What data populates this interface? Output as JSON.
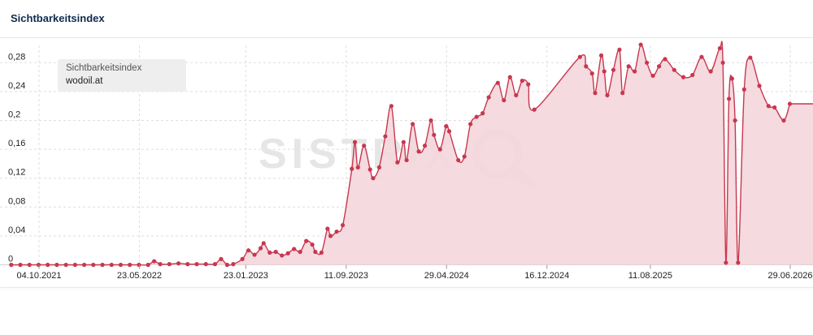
{
  "header": {
    "title": "Sichtbarkeitsindex"
  },
  "legend": {
    "metric": "Sichtbarkeitsindex",
    "domain": "wodoil.at"
  },
  "watermark": "SISTRIX",
  "colors": {
    "line": "#c8374f",
    "fill": "#f4d6dc",
    "grid": "#dedede"
  },
  "chart_data": {
    "type": "area",
    "title": "Sichtbarkeitsindex",
    "xlabel": "",
    "ylabel": "",
    "ylim": [
      0,
      0.3
    ],
    "yticks": [
      "0",
      "0,04",
      "0,08",
      "0,12",
      "0,16",
      "0,2",
      "0,24",
      "0,28"
    ],
    "xticks": [
      "04.10.2021",
      "23.05.2022",
      "23.01.2023",
      "11.09.2023",
      "29.04.2024",
      "16.12.2024",
      "11.08.2025",
      "29.06.2026"
    ],
    "grid": true,
    "legend_position": "top-left",
    "series": [
      {
        "name": "wodoil.at",
        "points": [
          [
            "2021-08-01",
            0
          ],
          [
            "2021-08-22",
            0
          ],
          [
            "2021-09-12",
            0
          ],
          [
            "2021-10-03",
            0
          ],
          [
            "2021-10-24",
            0
          ],
          [
            "2021-11-14",
            0
          ],
          [
            "2021-12-05",
            0
          ],
          [
            "2021-12-26",
            0
          ],
          [
            "2022-01-16",
            0
          ],
          [
            "2022-02-06",
            0
          ],
          [
            "2022-02-27",
            0
          ],
          [
            "2022-03-20",
            0
          ],
          [
            "2022-04-10",
            0
          ],
          [
            "2022-05-01",
            0
          ],
          [
            "2022-05-22",
            0
          ],
          [
            "2022-06-12",
            0
          ],
          [
            "2022-06-26",
            0.005
          ],
          [
            "2022-07-10",
            0.001
          ],
          [
            "2022-07-31",
            0.001
          ],
          [
            "2022-08-21",
            0.002
          ],
          [
            "2022-09-11",
            0.001
          ],
          [
            "2022-10-02",
            0.001
          ],
          [
            "2022-10-23",
            0.001
          ],
          [
            "2022-11-13",
            0.001
          ],
          [
            "2022-11-27",
            0.008
          ],
          [
            "2022-12-11",
            0
          ],
          [
            "2022-12-25",
            0.001
          ],
          [
            "2023-01-15",
            0.008
          ],
          [
            "2023-01-29",
            0.02
          ],
          [
            "2023-02-12",
            0.014
          ],
          [
            "2023-02-26",
            0.023
          ],
          [
            "2023-03-05",
            0.03
          ],
          [
            "2023-03-19",
            0.017
          ],
          [
            "2023-04-02",
            0.018
          ],
          [
            "2023-04-16",
            0.013
          ],
          [
            "2023-04-30",
            0.016
          ],
          [
            "2023-05-14",
            0.022
          ],
          [
            "2023-05-28",
            0.018
          ],
          [
            "2023-06-11",
            0.033
          ],
          [
            "2023-06-25",
            0.028
          ],
          [
            "2023-07-02",
            0.018
          ],
          [
            "2023-07-16",
            0.017
          ],
          [
            "2023-07-30",
            0.05
          ],
          [
            "2023-08-06",
            0.04
          ],
          [
            "2023-08-20",
            0.046
          ],
          [
            "2023-09-03",
            0.055
          ],
          [
            "2023-09-24",
            0.133
          ],
          [
            "2023-10-01",
            0.17
          ],
          [
            "2023-10-08",
            0.135
          ],
          [
            "2023-10-22",
            0.165
          ],
          [
            "2023-11-05",
            0.132
          ],
          [
            "2023-11-12",
            0.12
          ],
          [
            "2023-11-26",
            0.135
          ],
          [
            "2023-12-10",
            0.178
          ],
          [
            "2023-12-24",
            0.22
          ],
          [
            "2024-01-07",
            0.142
          ],
          [
            "2024-01-21",
            0.17
          ],
          [
            "2024-01-28",
            0.145
          ],
          [
            "2024-02-11",
            0.195
          ],
          [
            "2024-02-25",
            0.157
          ],
          [
            "2024-03-10",
            0.165
          ],
          [
            "2024-03-24",
            0.2
          ],
          [
            "2024-03-31",
            0.18
          ],
          [
            "2024-04-14",
            0.16
          ],
          [
            "2024-04-28",
            0.192
          ],
          [
            "2024-05-05",
            0.185
          ],
          [
            "2024-05-26",
            0.145
          ],
          [
            "2024-06-09",
            0.15
          ],
          [
            "2024-06-23",
            0.195
          ],
          [
            "2024-07-07",
            0.205
          ],
          [
            "2024-07-21",
            0.21
          ],
          [
            "2024-08-04",
            0.232
          ],
          [
            "2024-08-25",
            0.252
          ],
          [
            "2024-09-08",
            0.228
          ],
          [
            "2024-09-22",
            0.26
          ],
          [
            "2024-10-06",
            0.235
          ],
          [
            "2024-10-20",
            0.255
          ],
          [
            "2024-11-03",
            0.25
          ],
          [
            "2024-11-17",
            0.215
          ],
          [
            "2025-03-02",
            0.288
          ],
          [
            "2025-03-16",
            0.275
          ],
          [
            "2025-03-30",
            0.265
          ],
          [
            "2025-04-06",
            0.238
          ],
          [
            "2025-04-20",
            0.29
          ],
          [
            "2025-04-27",
            0.268
          ],
          [
            "2025-05-04",
            0.235
          ],
          [
            "2025-05-18",
            0.27
          ],
          [
            "2025-06-01",
            0.298
          ],
          [
            "2025-06-08",
            0.238
          ],
          [
            "2025-06-22",
            0.275
          ],
          [
            "2025-07-06",
            0.268
          ],
          [
            "2025-07-20",
            0.305
          ],
          [
            "2025-08-03",
            0.28
          ],
          [
            "2025-08-17",
            0.262
          ],
          [
            "2025-08-31",
            0.275
          ],
          [
            "2025-09-14",
            0.285
          ],
          [
            "2025-10-05",
            0.27
          ],
          [
            "2025-10-26",
            0.26
          ],
          [
            "2025-11-16",
            0.263
          ],
          [
            "2025-12-07",
            0.288
          ],
          [
            "2025-12-28",
            0.268
          ],
          [
            "2026-01-18",
            0.3
          ],
          [
            "2026-01-25",
            0.28
          ],
          [
            "2026-02-01",
            0.003
          ],
          [
            "2026-02-08",
            0.23
          ],
          [
            "2026-02-15",
            0.258
          ],
          [
            "2026-02-22",
            0.2
          ],
          [
            "2026-03-01",
            0.003
          ],
          [
            "2026-03-15",
            0.243
          ],
          [
            "2026-03-29",
            0.287
          ],
          [
            "2026-04-19",
            0.248
          ],
          [
            "2026-05-10",
            0.22
          ],
          [
            "2026-05-24",
            0.218
          ],
          [
            "2026-06-14",
            0.2
          ],
          [
            "2026-06-28",
            0.223
          ]
        ]
      }
    ]
  }
}
